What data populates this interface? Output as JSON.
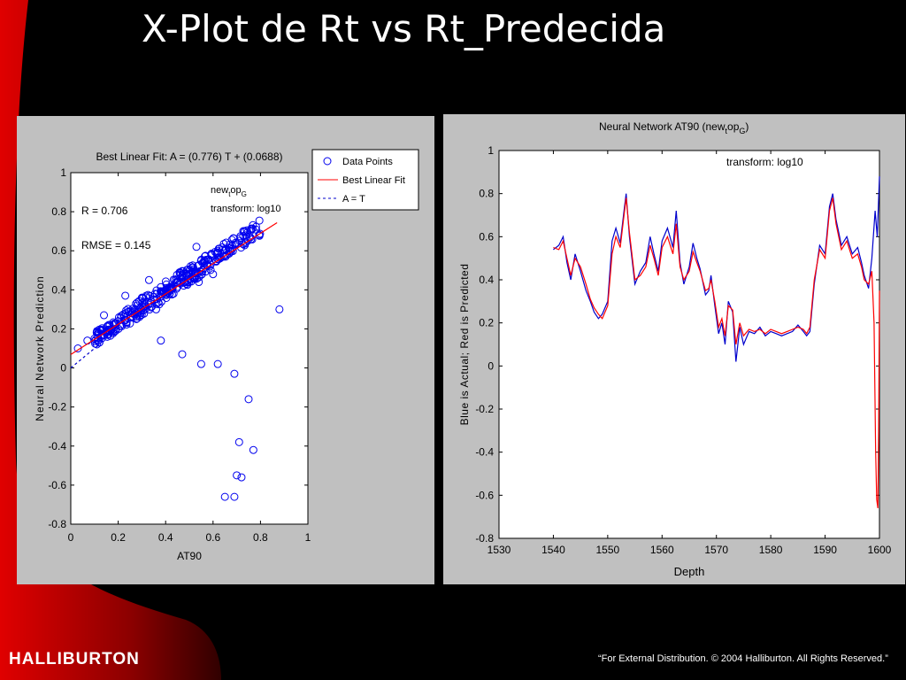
{
  "slide": {
    "title": "X-Plot de Rt vs Rt_Predecida",
    "logo": "HALLIBURTON",
    "footer": "“For External Distribution. © 2004 Halliburton. All Rights Reserved.”"
  },
  "colors": {
    "background": "#000000",
    "accent_red": "#c00000",
    "panel": "#c0c0c0",
    "actual": "#0000cc",
    "predicted": "#ff0000"
  },
  "chart_data": [
    {
      "type": "scatter",
      "title": "Best Linear Fit:  A = (0.776) T + (0.0688)",
      "xlabel": "AT90",
      "ylabel": "Neural Network Prediction",
      "xlim": [
        0,
        1
      ],
      "ylim": [
        -0.8,
        1
      ],
      "xticks": [
        "0",
        "0.2",
        "0.4",
        "0.6",
        "0.8",
        "1"
      ],
      "yticks": [
        "-0.8",
        "-0.6",
        "-0.4",
        "-0.2",
        "0",
        "0.2",
        "0.4",
        "0.6",
        "0.8",
        "1"
      ],
      "annotations": {
        "r": "R = 0.706",
        "rmse": "RMSE = 0.145",
        "net_base": "new",
        "net_sub1": "t",
        "net_mid": "op",
        "net_sub2": "G",
        "transform": "transform: log10"
      },
      "legend": {
        "placement": "outside-top-right",
        "entries": [
          "Data Points",
          "Best Linear Fit",
          "A = T"
        ]
      },
      "fit": {
        "slope": 0.776,
        "intercept": 0.0688,
        "x_range": [
          0,
          0.87
        ]
      },
      "identity_range": [
        0,
        0.12
      ],
      "outliers": [
        [
          0.38,
          0.14
        ],
        [
          0.47,
          0.07
        ],
        [
          0.55,
          0.02
        ],
        [
          0.62,
          0.02
        ],
        [
          0.69,
          -0.03
        ],
        [
          0.75,
          -0.16
        ],
        [
          0.71,
          -0.38
        ],
        [
          0.77,
          -0.42
        ],
        [
          0.7,
          -0.55
        ],
        [
          0.72,
          -0.56
        ],
        [
          0.65,
          -0.66
        ],
        [
          0.69,
          -0.66
        ],
        [
          0.88,
          0.3
        ],
        [
          0.14,
          0.27
        ],
        [
          0.23,
          0.37
        ],
        [
          0.33,
          0.45
        ],
        [
          0.28,
          0.32
        ],
        [
          0.19,
          0.2
        ],
        [
          0.54,
          0.44
        ],
        [
          0.6,
          0.48
        ],
        [
          0.4,
          0.4
        ],
        [
          0.36,
          0.3
        ],
        [
          0.3,
          0.36
        ],
        [
          0.53,
          0.62
        ],
        [
          0.03,
          0.1
        ],
        [
          0.07,
          0.14
        ],
        [
          0.1,
          0.15
        ],
        [
          0.12,
          0.18
        ],
        [
          0.16,
          0.22
        ],
        [
          0.2,
          0.24
        ]
      ],
      "cluster": [
        {
          "x_range": [
            0.1,
            0.22
          ],
          "y_center_offset": 0.0,
          "spread": 0.035,
          "count": 60
        },
        {
          "x_range": [
            0.22,
            0.4
          ],
          "y_center_offset": 0.01,
          "spread": 0.045,
          "count": 80
        },
        {
          "x_range": [
            0.4,
            0.6
          ],
          "y_center_offset": 0.02,
          "spread": 0.045,
          "count": 120
        },
        {
          "x_range": [
            0.6,
            0.8
          ],
          "y_center_offset": 0.03,
          "spread": 0.04,
          "count": 70
        }
      ]
    },
    {
      "type": "line",
      "title": "Neural Network  AT90",
      "subtitle_base": "(new",
      "subtitle_sub1": "t",
      "subtitle_mid": "op",
      "subtitle_sub2": "G",
      "subtitle_end": ")",
      "annotation": "transform: log10",
      "xlabel": "Depth",
      "ylabel": "Blue is Actual; Red is Predicted",
      "xlim": [
        1530,
        1600
      ],
      "ylim": [
        -0.8,
        1
      ],
      "xticks": [
        "1530",
        "1540",
        "1550",
        "1560",
        "1570",
        "1580",
        "1590",
        "1600"
      ],
      "yticks": [
        "-0.8",
        "-0.6",
        "-0.4",
        "-0.2",
        "0",
        "0.2",
        "0.4",
        "0.6",
        "0.8",
        "1"
      ],
      "series": [
        {
          "color": "#0000cc",
          "x": [
            1540,
            1541,
            1541.8,
            1542.5,
            1543.2,
            1544,
            1545,
            1546,
            1546.8,
            1547.5,
            1548.3,
            1549,
            1550,
            1550.8,
            1551.5,
            1552.3,
            1553,
            1553.4,
            1554,
            1555,
            1556,
            1557,
            1557.8,
            1558.5,
            1559.3,
            1560,
            1561,
            1562,
            1562.6,
            1563.3,
            1564,
            1565,
            1565.7,
            1566.4,
            1567,
            1568,
            1568.6,
            1569,
            1569.7,
            1570.4,
            1571,
            1571.6,
            1572.2,
            1573,
            1573.6,
            1574.3,
            1575,
            1576,
            1577,
            1578,
            1579,
            1580,
            1581,
            1582,
            1583,
            1584,
            1585,
            1586,
            1586.6,
            1587.2,
            1588,
            1589,
            1590,
            1590.8,
            1591.4,
            1592,
            1593,
            1594,
            1595,
            1596,
            1596.7,
            1597.2,
            1598,
            1598.6,
            1599.2,
            1599.6,
            1600
          ],
          "y": [
            0.54,
            0.56,
            0.6,
            0.48,
            0.4,
            0.52,
            0.44,
            0.35,
            0.3,
            0.25,
            0.22,
            0.24,
            0.3,
            0.58,
            0.64,
            0.57,
            0.72,
            0.8,
            0.6,
            0.38,
            0.44,
            0.48,
            0.6,
            0.52,
            0.44,
            0.58,
            0.64,
            0.55,
            0.72,
            0.48,
            0.38,
            0.46,
            0.57,
            0.5,
            0.45,
            0.33,
            0.35,
            0.42,
            0.28,
            0.15,
            0.2,
            0.1,
            0.3,
            0.25,
            0.02,
            0.18,
            0.1,
            0.16,
            0.15,
            0.18,
            0.14,
            0.16,
            0.15,
            0.14,
            0.15,
            0.16,
            0.19,
            0.16,
            0.14,
            0.16,
            0.38,
            0.56,
            0.52,
            0.74,
            0.8,
            0.68,
            0.56,
            0.6,
            0.52,
            0.55,
            0.48,
            0.42,
            0.36,
            0.5,
            0.72,
            0.6,
            0.88
          ]
        },
        {
          "color": "#ff0000",
          "x": [
            1540,
            1541,
            1541.8,
            1542.5,
            1543.2,
            1544,
            1545,
            1546,
            1546.8,
            1547.5,
            1548.3,
            1549,
            1550,
            1550.8,
            1551.5,
            1552.3,
            1553,
            1553.4,
            1554,
            1555,
            1556,
            1557,
            1557.8,
            1558.5,
            1559.3,
            1560,
            1561,
            1562,
            1562.6,
            1563.3,
            1564,
            1565,
            1565.7,
            1566.4,
            1567,
            1568,
            1568.6,
            1569,
            1569.7,
            1570.4,
            1571,
            1571.6,
            1572.2,
            1573,
            1573.6,
            1574.3,
            1575,
            1576,
            1577,
            1578,
            1579,
            1580,
            1581,
            1582,
            1583,
            1584,
            1585,
            1586,
            1586.6,
            1587.2,
            1588,
            1589,
            1590,
            1590.8,
            1591.4,
            1592,
            1593,
            1594,
            1595,
            1596,
            1596.7,
            1597.2,
            1598,
            1598.6,
            1599,
            1599.3,
            1599.5,
            1599.7,
            1599.85,
            1600
          ],
          "y": [
            0.55,
            0.54,
            0.58,
            0.5,
            0.42,
            0.5,
            0.46,
            0.38,
            0.31,
            0.27,
            0.24,
            0.22,
            0.28,
            0.52,
            0.6,
            0.55,
            0.7,
            0.78,
            0.62,
            0.4,
            0.42,
            0.46,
            0.56,
            0.5,
            0.42,
            0.55,
            0.6,
            0.52,
            0.66,
            0.46,
            0.4,
            0.44,
            0.53,
            0.48,
            0.44,
            0.35,
            0.36,
            0.4,
            0.3,
            0.18,
            0.22,
            0.14,
            0.28,
            0.26,
            0.1,
            0.2,
            0.14,
            0.17,
            0.16,
            0.17,
            0.15,
            0.17,
            0.16,
            0.15,
            0.16,
            0.17,
            0.18,
            0.17,
            0.15,
            0.18,
            0.4,
            0.54,
            0.5,
            0.72,
            0.78,
            0.66,
            0.54,
            0.58,
            0.5,
            0.52,
            0.46,
            0.4,
            0.38,
            0.44,
            0.2,
            -0.4,
            -0.62,
            -0.66,
            -0.3,
            0.35
          ]
        }
      ]
    }
  ]
}
